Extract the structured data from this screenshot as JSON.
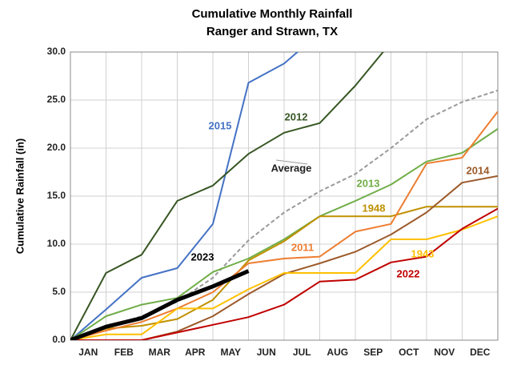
{
  "chart_data": {
    "type": "line",
    "title": "Cumulative Monthly Rainfall",
    "subtitle": "Ranger and Strawn, TX",
    "y_label": "Cumulative Rainfall (in)",
    "x": [
      0,
      1,
      2,
      3,
      4,
      5,
      6,
      7,
      8,
      9,
      10,
      11,
      12
    ],
    "xlim": [
      0,
      12
    ],
    "xticks": [
      {
        "value": 0.5,
        "label": "JAN"
      },
      {
        "value": 1.5,
        "label": "FEB"
      },
      {
        "value": 2.5,
        "label": "MAR"
      },
      {
        "value": 3.5,
        "label": "APR"
      },
      {
        "value": 4.5,
        "label": "MAY"
      },
      {
        "value": 5.5,
        "label": "JUN"
      },
      {
        "value": 6.5,
        "label": "JUL"
      },
      {
        "value": 7.5,
        "label": "AUG"
      },
      {
        "value": 8.5,
        "label": "SEP"
      },
      {
        "value": 9.5,
        "label": "OCT"
      },
      {
        "value": 10.5,
        "label": "NOV"
      },
      {
        "value": 11.5,
        "label": "DEC"
      }
    ],
    "ylim": [
      0,
      30
    ],
    "yticks": [
      {
        "value": 0,
        "label": "0.0"
      },
      {
        "value": 5,
        "label": "5.0"
      },
      {
        "value": 10,
        "label": "10.0"
      },
      {
        "value": 15,
        "label": "15.0"
      },
      {
        "value": 20,
        "label": "20.0"
      },
      {
        "value": 25,
        "label": "25.0"
      },
      {
        "value": 30,
        "label": "30.0"
      }
    ],
    "grid": true,
    "series": [
      {
        "name": "2015",
        "color": "#4472c4",
        "values": [
          0,
          3.2,
          6.5,
          7.5,
          12.1,
          26.8,
          28.8,
          32.0,
          null,
          null,
          null,
          null,
          null
        ]
      },
      {
        "name": "2012",
        "color": "#375623",
        "values": [
          0,
          7.0,
          8.9,
          14.5,
          16.1,
          19.4,
          21.6,
          22.6,
          26.5,
          31.0,
          null,
          null,
          null
        ]
      },
      {
        "name": "Average",
        "color": "#999999",
        "dashed": true,
        "values": [
          0,
          1.3,
          2.5,
          4.0,
          6.5,
          10.4,
          13.3,
          15.5,
          17.3,
          20.0,
          23.0,
          24.8,
          26.0
        ]
      },
      {
        "name": "2013",
        "color": "#70ad47",
        "values": [
          0,
          2.5,
          3.7,
          4.4,
          7.1,
          8.5,
          10.5,
          12.9,
          14.5,
          16.2,
          18.6,
          19.5,
          22.0
        ]
      },
      {
        "name": "1948",
        "color": "#bf9000",
        "values": [
          0,
          1.2,
          1.5,
          2.2,
          4.2,
          8.3,
          10.3,
          12.9,
          12.9,
          12.9,
          13.9,
          13.9,
          13.9
        ]
      },
      {
        "name": "2014",
        "color": "#9c5a2a",
        "values": [
          0,
          0,
          0,
          0.9,
          2.5,
          4.8,
          6.9,
          8.0,
          9.2,
          11.0,
          13.3,
          16.4,
          17.1
        ]
      },
      {
        "name": "2011",
        "color": "#ed7d31",
        "values": [
          0,
          1.0,
          1.9,
          3.3,
          5.0,
          8.0,
          8.5,
          8.7,
          11.3,
          12.1,
          18.4,
          19.0,
          23.8
        ]
      },
      {
        "name": "1943",
        "color": "#ffc000",
        "values": [
          0,
          0.6,
          0.6,
          3.3,
          3.3,
          5.3,
          7.0,
          7.0,
          7.0,
          10.5,
          10.5,
          11.5,
          12.9
        ]
      },
      {
        "name": "2022",
        "color": "#c00000",
        "values": [
          0,
          0,
          0,
          0.8,
          1.6,
          2.4,
          3.7,
          6.1,
          6.3,
          8.1,
          8.7,
          11.6,
          13.7
        ]
      },
      {
        "name": "2023",
        "color": "#000000",
        "width": 5,
        "values": [
          0,
          1.4,
          2.3,
          4.2,
          5.6,
          7.2,
          null,
          null,
          null,
          null,
          null,
          null,
          null
        ]
      }
    ]
  }
}
